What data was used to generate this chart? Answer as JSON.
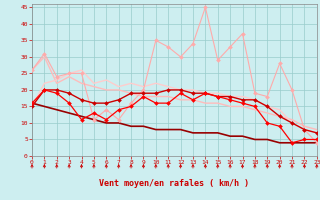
{
  "xlabel": "Vent moyen/en rafales ( km/h )",
  "xlim": [
    0,
    23
  ],
  "ylim": [
    0,
    46
  ],
  "yticks": [
    0,
    5,
    10,
    15,
    20,
    25,
    30,
    35,
    40,
    45
  ],
  "xticks": [
    0,
    1,
    2,
    3,
    4,
    5,
    6,
    7,
    8,
    9,
    10,
    11,
    12,
    13,
    14,
    15,
    16,
    17,
    18,
    19,
    20,
    21,
    22,
    23
  ],
  "bg_color": "#cdeef0",
  "lines": [
    {
      "y": [
        26,
        31,
        24,
        25,
        25,
        11,
        14,
        11,
        16,
        20,
        35,
        33,
        30,
        34,
        45,
        29,
        33,
        37,
        19,
        18,
        28,
        20,
        8,
        4
      ],
      "color": "#ffaaaa",
      "lw": 0.8,
      "marker": "D",
      "ms": 2.0
    },
    {
      "y": [
        15,
        20,
        20,
        19,
        17,
        16,
        16,
        17,
        19,
        19,
        19,
        20,
        20,
        19,
        19,
        18,
        18,
        17,
        17,
        15,
        12,
        10,
        8,
        7
      ],
      "color": "#cc0000",
      "lw": 1.0,
      "marker": "D",
      "ms": 2.0
    },
    {
      "y": [
        16,
        20,
        19,
        16,
        11,
        13,
        11,
        14,
        15,
        18,
        16,
        16,
        19,
        17,
        19,
        18,
        17,
        16,
        15,
        10,
        9,
        4,
        5,
        5
      ],
      "color": "#ff0000",
      "lw": 0.9,
      "marker": "D",
      "ms": 2.0
    },
    {
      "y": [
        26,
        30,
        22,
        24,
        22,
        21,
        20,
        20,
        19,
        18,
        18,
        18,
        17,
        17,
        16,
        16,
        15,
        15,
        14,
        13,
        12,
        11,
        9,
        8
      ],
      "color": "#ffbbbb",
      "lw": 1.0,
      "marker": null,
      "ms": 0
    },
    {
      "y": [
        15,
        22,
        23,
        25,
        26,
        22,
        23,
        21,
        22,
        21,
        22,
        21,
        20,
        20,
        19,
        19,
        18,
        18,
        17,
        15,
        14,
        10,
        8,
        7
      ],
      "color": "#ffcccc",
      "lw": 1.0,
      "marker": null,
      "ms": 0
    },
    {
      "y": [
        16,
        15,
        14,
        13,
        12,
        11,
        10,
        10,
        9,
        9,
        8,
        8,
        8,
        7,
        7,
        7,
        6,
        6,
        5,
        5,
        4,
        4,
        4,
        4
      ],
      "color": "#990000",
      "lw": 1.2,
      "marker": null,
      "ms": 0
    }
  ],
  "arrow_color": "#cc0000",
  "grid_color": "#99cccc",
  "tick_color": "#cc0000",
  "label_color": "#cc0000"
}
